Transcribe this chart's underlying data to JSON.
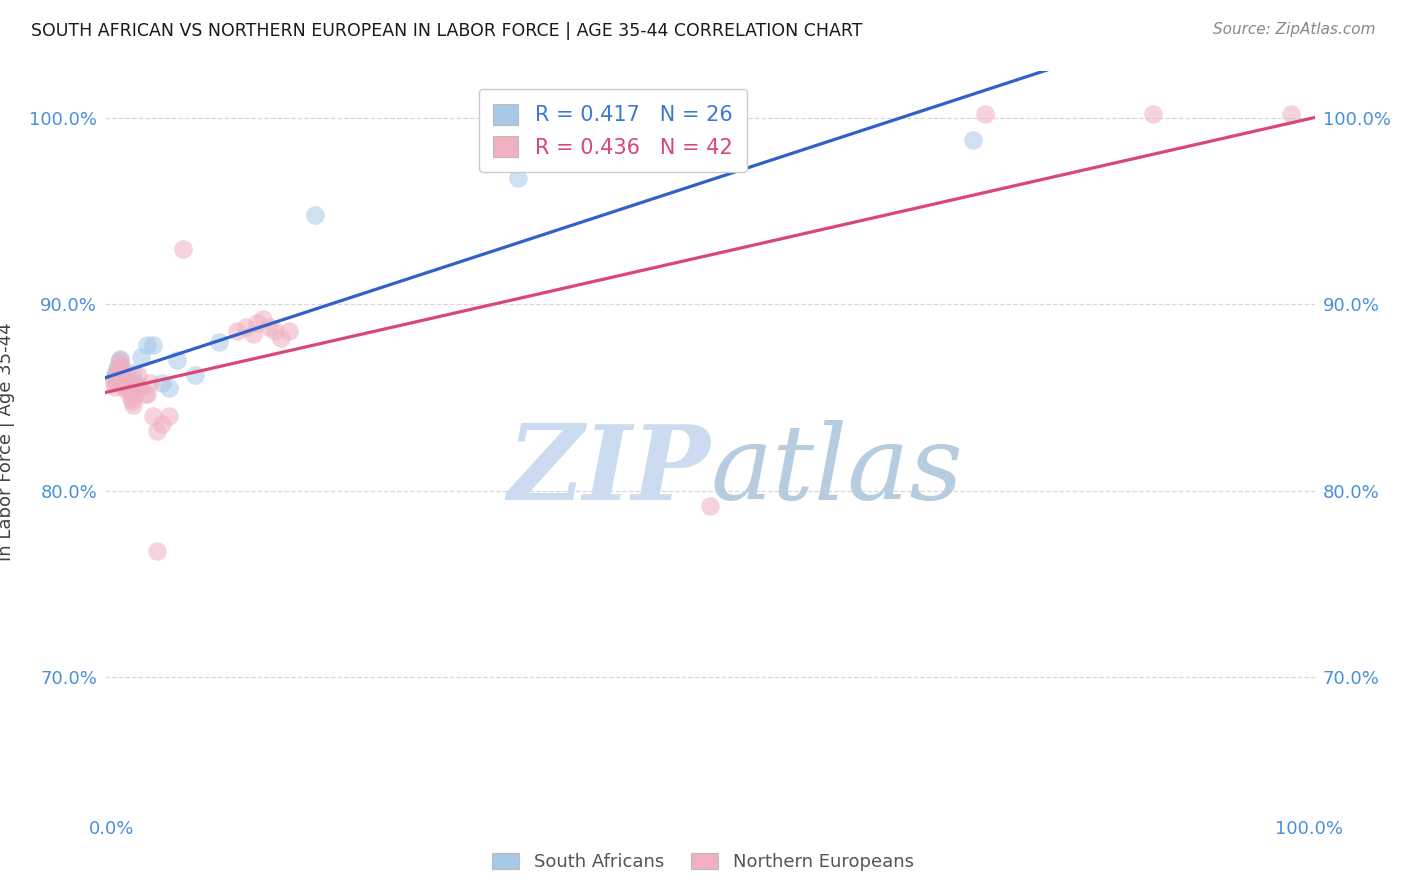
{
  "title": "SOUTH AFRICAN VS NORTHERN EUROPEAN IN LABOR FORCE | AGE 35-44 CORRELATION CHART",
  "source": "Source: ZipAtlas.com",
  "ylabel": "In Labor Force | Age 35-44",
  "xlim": [
    -0.005,
    1.005
  ],
  "ylim": [
    0.628,
    1.025
  ],
  "yticks": [
    0.7,
    0.8,
    0.9,
    1.0
  ],
  "yticklabels": [
    "70.0%",
    "80.0%",
    "90.0%",
    "100.0%"
  ],
  "xticks": [
    0.0,
    0.1,
    0.2,
    0.3,
    0.4,
    0.5,
    0.6,
    0.7,
    0.8,
    0.9,
    1.0
  ],
  "grid_color": "#d8d8d8",
  "background_color": "#ffffff",
  "blue_scatter_color": "#a8c8e8",
  "pink_scatter_color": "#f0b0c0",
  "blue_line_color": "#3060c8",
  "pink_line_color": "#d84870",
  "R_blue": 0.417,
  "N_blue": 26,
  "R_pink": 0.436,
  "N_pink": 42,
  "blue_x": [
    0.002,
    0.003,
    0.004,
    0.005,
    0.006,
    0.007,
    0.008,
    0.009,
    0.01,
    0.012,
    0.014,
    0.016,
    0.018,
    0.02,
    0.022,
    0.025,
    0.03,
    0.035,
    0.042,
    0.048,
    0.055,
    0.07,
    0.09,
    0.17,
    0.34,
    0.72
  ],
  "blue_y": [
    0.86,
    0.862,
    0.863,
    0.866,
    0.869,
    0.871,
    0.865,
    0.858,
    0.857,
    0.861,
    0.858,
    0.856,
    0.863,
    0.858,
    0.856,
    0.872,
    0.878,
    0.878,
    0.858,
    0.855,
    0.87,
    0.862,
    0.88,
    0.948,
    0.968,
    0.988
  ],
  "pink_x": [
    0.002,
    0.003,
    0.004,
    0.005,
    0.006,
    0.007,
    0.008,
    0.009,
    0.01,
    0.011,
    0.012,
    0.013,
    0.014,
    0.015,
    0.016,
    0.017,
    0.018,
    0.02,
    0.022,
    0.025,
    0.028,
    0.03,
    0.032,
    0.035,
    0.038,
    0.042,
    0.048,
    0.06,
    0.105,
    0.112,
    0.118,
    0.122,
    0.127,
    0.132,
    0.137,
    0.142,
    0.148,
    0.5,
    0.73,
    0.87,
    0.985,
    0.038
  ],
  "pink_y": [
    0.858,
    0.856,
    0.86,
    0.864,
    0.867,
    0.87,
    0.867,
    0.858,
    0.862,
    0.856,
    0.854,
    0.86,
    0.862,
    0.856,
    0.85,
    0.848,
    0.846,
    0.852,
    0.862,
    0.856,
    0.852,
    0.852,
    0.858,
    0.84,
    0.832,
    0.836,
    0.84,
    0.93,
    0.886,
    0.888,
    0.884,
    0.89,
    0.892,
    0.888,
    0.886,
    0.882,
    0.886,
    0.792,
    1.002,
    1.002,
    1.002,
    0.768
  ],
  "watermark_zip_color": "#ccdcf0",
  "watermark_atlas_color": "#b8cce0",
  "bottom_legend_labels": [
    "South Africans",
    "Northern Europeans"
  ]
}
